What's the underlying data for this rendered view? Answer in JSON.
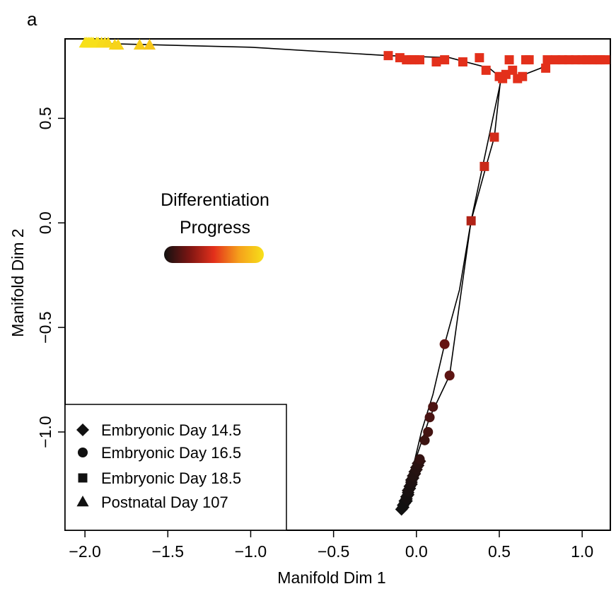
{
  "panel_label": "a",
  "chart_data": {
    "type": "scatter",
    "xlabel": "Manifold Dim 1",
    "ylabel": "Manifold Dim 2",
    "xlim": [
      -2.12,
      1.17
    ],
    "ylim": [
      -1.47,
      0.88
    ],
    "x_ticks": [
      -2.0,
      -1.5,
      -1.0,
      -0.5,
      0.0,
      0.5,
      1.0
    ],
    "x_tick_labels": [
      "−2.0",
      "−1.5",
      "−1.0",
      "−0.5",
      "0.0",
      "0.5",
      "1.0"
    ],
    "y_ticks": [
      -1.0,
      -0.5,
      0.0,
      0.5
    ],
    "y_tick_labels": [
      "−1.0",
      "−0.5",
      "0.0",
      "0.5"
    ],
    "grid": false,
    "colorbar": {
      "title_lines": [
        "Differentiation",
        "Progress"
      ],
      "colors": [
        "#111111",
        "#7a1512",
        "#e3301b",
        "#f5a01b",
        "#f7e01a"
      ]
    },
    "legend": {
      "position": "bottom-left",
      "entries": [
        {
          "label": "Embryonic Day 14.5",
          "marker": "diamond"
        },
        {
          "label": "Embryonic Day 16.5",
          "marker": "circle"
        },
        {
          "label": "Embryonic Day 18.5",
          "marker": "square"
        },
        {
          "label": "Postnatal Day 107",
          "marker": "triangle"
        }
      ]
    },
    "trajectory_lines": [
      [
        [
          -0.08,
          -1.37
        ],
        [
          -0.03,
          -1.2
        ],
        [
          0.03,
          -1.0
        ],
        [
          0.1,
          -0.82
        ],
        [
          0.17,
          -0.58
        ],
        [
          0.26,
          -0.32
        ],
        [
          0.33,
          0.01
        ],
        [
          0.42,
          0.27
        ],
        [
          0.47,
          0.41
        ],
        [
          0.51,
          0.7
        ]
      ],
      [
        [
          -0.08,
          -1.37
        ],
        [
          0.0,
          -1.12
        ],
        [
          0.08,
          -0.93
        ],
        [
          0.2,
          -0.73
        ],
        [
          0.33,
          0.01
        ],
        [
          0.52,
          0.72
        ]
      ],
      [
        [
          -2.0,
          0.86
        ],
        [
          -1.0,
          0.84
        ],
        [
          -0.17,
          0.8
        ],
        [
          0.2,
          0.79
        ],
        [
          0.44,
          0.74
        ],
        [
          0.5,
          0.7
        ],
        [
          0.57,
          0.72
        ],
        [
          0.62,
          0.7
        ],
        [
          0.75,
          0.74
        ],
        [
          0.8,
          0.78
        ],
        [
          1.15,
          0.78
        ]
      ]
    ],
    "series": [
      {
        "name": "Embryonic Day 14.5",
        "marker": "diamond",
        "points": [
          [
            -0.09,
            -1.37
          ],
          [
            -0.08,
            -1.36
          ],
          [
            -0.08,
            -1.35
          ],
          [
            -0.07,
            -1.34
          ],
          [
            -0.07,
            -1.33
          ],
          [
            -0.06,
            -1.33
          ],
          [
            -0.06,
            -1.32
          ],
          [
            -0.06,
            -1.31
          ],
          [
            -0.05,
            -1.3
          ],
          [
            -0.05,
            -1.29
          ],
          [
            -0.05,
            -1.28
          ],
          [
            -0.04,
            -1.27
          ],
          [
            -0.04,
            -1.26
          ],
          [
            -0.03,
            -1.25
          ],
          [
            -0.03,
            -1.24
          ],
          [
            -0.03,
            -1.23
          ],
          [
            -0.02,
            -1.22
          ],
          [
            -0.02,
            -1.21
          ],
          [
            -0.01,
            -1.2
          ],
          [
            -0.01,
            -1.19
          ],
          [
            0.0,
            -1.18
          ],
          [
            0.0,
            -1.17
          ],
          [
            0.01,
            -1.16
          ],
          [
            0.01,
            -1.15
          ],
          [
            0.02,
            -1.14
          ]
        ],
        "color_progress": [
          0,
          0,
          0,
          0,
          0,
          0,
          0.01,
          0.01,
          0.01,
          0.01,
          0.02,
          0.02,
          0.02,
          0.02,
          0.03,
          0.03,
          0.03,
          0.04,
          0.04,
          0.04,
          0.05,
          0.05,
          0.05,
          0.06,
          0.06
        ]
      },
      {
        "name": "Embryonic Day 16.5",
        "marker": "circle",
        "points": [
          [
            0.02,
            -1.13
          ],
          [
            0.05,
            -1.04
          ],
          [
            0.07,
            -1.0
          ],
          [
            0.08,
            -0.93
          ],
          [
            0.1,
            -0.88
          ],
          [
            0.17,
            -0.58
          ],
          [
            0.2,
            -0.73
          ]
        ],
        "color_progress": [
          0.08,
          0.1,
          0.12,
          0.13,
          0.14,
          0.2,
          0.18
        ]
      },
      {
        "name": "Embryonic Day 18.5",
        "marker": "square",
        "points": [
          [
            0.33,
            0.01
          ],
          [
            0.41,
            0.27
          ],
          [
            0.47,
            0.41
          ],
          [
            0.5,
            0.7
          ],
          [
            0.52,
            0.69
          ],
          [
            0.54,
            0.71
          ],
          [
            0.56,
            0.78
          ],
          [
            0.58,
            0.73
          ],
          [
            0.61,
            0.69
          ],
          [
            0.64,
            0.7
          ],
          [
            0.66,
            0.78
          ],
          [
            0.78,
            0.74
          ],
          [
            0.79,
            0.78
          ],
          [
            0.84,
            0.78
          ],
          [
            0.88,
            0.78
          ],
          [
            0.92,
            0.78
          ],
          [
            0.96,
            0.78
          ],
          [
            1.0,
            0.78
          ],
          [
            1.03,
            0.78
          ],
          [
            1.06,
            0.78
          ],
          [
            1.09,
            0.78
          ],
          [
            1.11,
            0.78
          ],
          [
            1.14,
            0.78
          ],
          [
            -0.17,
            0.8
          ],
          [
            -0.1,
            0.79
          ],
          [
            -0.06,
            0.78
          ],
          [
            -0.03,
            0.78
          ],
          [
            -0.01,
            0.78
          ],
          [
            0.02,
            0.78
          ],
          [
            0.12,
            0.77
          ],
          [
            0.17,
            0.78
          ],
          [
            0.28,
            0.77
          ],
          [
            0.38,
            0.79
          ],
          [
            0.42,
            0.73
          ],
          [
            0.68,
            0.78
          ]
        ],
        "color_progress": [
          0.38,
          0.44,
          0.46,
          0.5,
          0.5,
          0.5,
          0.5,
          0.5,
          0.5,
          0.5,
          0.5,
          0.5,
          0.5,
          0.5,
          0.5,
          0.5,
          0.5,
          0.5,
          0.5,
          0.5,
          0.5,
          0.5,
          0.5,
          0.5,
          0.5,
          0.5,
          0.5,
          0.5,
          0.5,
          0.5,
          0.5,
          0.5,
          0.5,
          0.5,
          0.5
        ]
      },
      {
        "name": "Postnatal Day 107",
        "marker": "triangle",
        "points": [
          [
            -2.0,
            0.86
          ],
          [
            -1.99,
            0.86
          ],
          [
            -1.98,
            0.86
          ],
          [
            -1.97,
            0.86
          ],
          [
            -1.96,
            0.86
          ],
          [
            -1.95,
            0.86
          ],
          [
            -1.93,
            0.86
          ],
          [
            -1.92,
            0.86
          ],
          [
            -1.9,
            0.86
          ],
          [
            -1.88,
            0.86
          ],
          [
            -1.86,
            0.86
          ],
          [
            -1.82,
            0.85
          ],
          [
            -1.8,
            0.85
          ],
          [
            -1.67,
            0.85
          ],
          [
            -1.61,
            0.85
          ]
        ],
        "color_progress": [
          1,
          1,
          1,
          1,
          1,
          1,
          1,
          1,
          0.98,
          0.98,
          0.97,
          0.95,
          0.95,
          0.92,
          0.9
        ]
      }
    ]
  }
}
